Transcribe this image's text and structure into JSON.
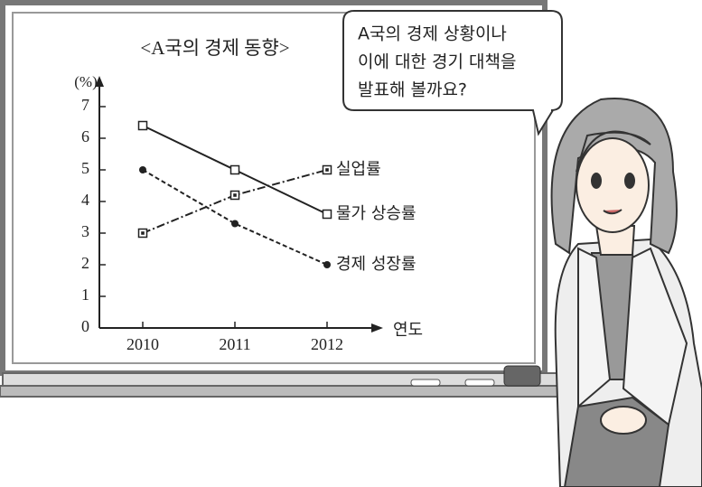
{
  "chart_data": {
    "type": "line",
    "title": "<A국의 경제 동향>",
    "y_label": "(%)",
    "x_label": "연도",
    "categories": [
      "2010",
      "2011",
      "2012"
    ],
    "series": [
      {
        "name": "실업률",
        "color": "#222222",
        "marker": "square-dot",
        "line_style": "dash-dot",
        "values": [
          3,
          4.2,
          5
        ]
      },
      {
        "name": "물가 상승률",
        "color": "#222222",
        "marker": "square-open",
        "line_style": "solid",
        "values": [
          6.4,
          5,
          3.6
        ]
      },
      {
        "name": "경제 성장률",
        "color": "#222222",
        "marker": "circle",
        "line_style": "dashed",
        "values": [
          5,
          3.3,
          2
        ]
      }
    ],
    "ylim": [
      0,
      7
    ],
    "yticks": [
      0,
      1,
      2,
      3,
      4,
      5,
      6,
      7
    ],
    "grid": false
  },
  "speech_bubble": {
    "lines": [
      "A국의 경제 상황이나",
      "이에 대한 경기 대책을",
      "발표해 볼까요?"
    ]
  }
}
